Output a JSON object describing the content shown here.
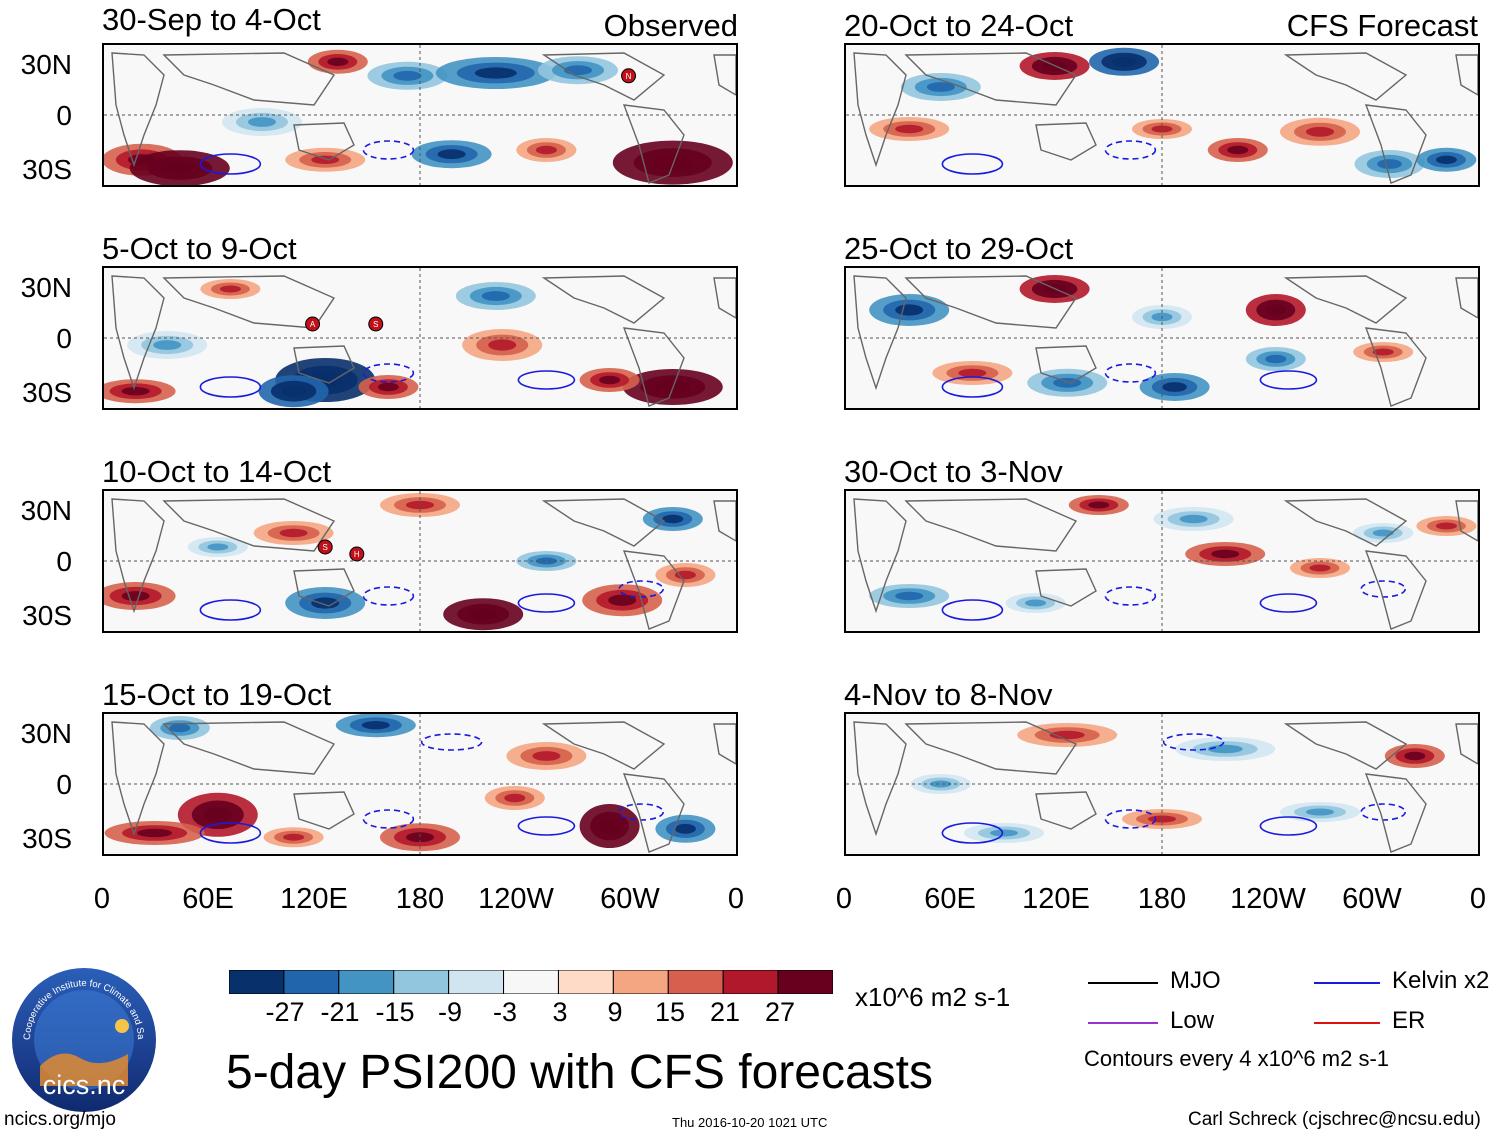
{
  "figure": {
    "title": "5-day PSI200 with CFS forecasts",
    "source_label_observed": "Observed",
    "source_label_forecast": "CFS Forecast",
    "units": "x10^6 m2 s-1",
    "contour_note": "Contours every 4 x10^6 m2 s-1",
    "site": "ncics.org/mjo",
    "timestamp": "Thu 2016-10-20 1021 UTC",
    "author": "Carl Schreck (cjschrec@ncsu.edu)",
    "logo_text": "cics.nc",
    "logo_ring_text": "Cooperative Institute for Climate and Satellites"
  },
  "chart_data": {
    "type": "heatmap",
    "variable": "5-day PSI200 anomaly",
    "lat_ticks": [
      "30N",
      "0",
      "30S"
    ],
    "lon_ticks": [
      "0",
      "60E",
      "120E",
      "180",
      "120W",
      "60W",
      "0"
    ],
    "colorbar": {
      "ticks": [
        "-27",
        "-21",
        "-15",
        "-9",
        "-3",
        "3",
        "9",
        "15",
        "21",
        "27"
      ],
      "colors": [
        "#08306b",
        "#2166ac",
        "#4393c3",
        "#92c5de",
        "#d1e5f0",
        "#f7f7f7",
        "#fddbc7",
        "#f4a582",
        "#d6604d",
        "#b2182b",
        "#67001f"
      ]
    },
    "legend": [
      {
        "label": "MJO",
        "color": "#000000"
      },
      {
        "label": "Kelvin x2",
        "color": "#1a1adf"
      },
      {
        "label": "Low",
        "color": "#9a32cd"
      },
      {
        "label": "ER",
        "color": "#e01010"
      }
    ],
    "panels": [
      {
        "period": "30-Sep to 4-Oct",
        "kind": "observed"
      },
      {
        "period": "5-Oct to 9-Oct",
        "kind": "observed"
      },
      {
        "period": "10-Oct to 14-Oct",
        "kind": "observed"
      },
      {
        "period": "15-Oct to 19-Oct",
        "kind": "observed"
      },
      {
        "period": "20-Oct to 24-Oct",
        "kind": "forecast"
      },
      {
        "period": "25-Oct to 29-Oct",
        "kind": "forecast"
      },
      {
        "period": "30-Oct to 3-Nov",
        "kind": "forecast"
      },
      {
        "period": "4-Nov to 8-Nov",
        "kind": "forecast"
      }
    ],
    "storm_markers": [
      {
        "panel": 0,
        "label": "N"
      },
      {
        "panel": 1,
        "label": "A"
      },
      {
        "panel": 1,
        "label": "S"
      },
      {
        "panel": 2,
        "label": "S"
      },
      {
        "panel": 2,
        "label": "H"
      }
    ]
  }
}
